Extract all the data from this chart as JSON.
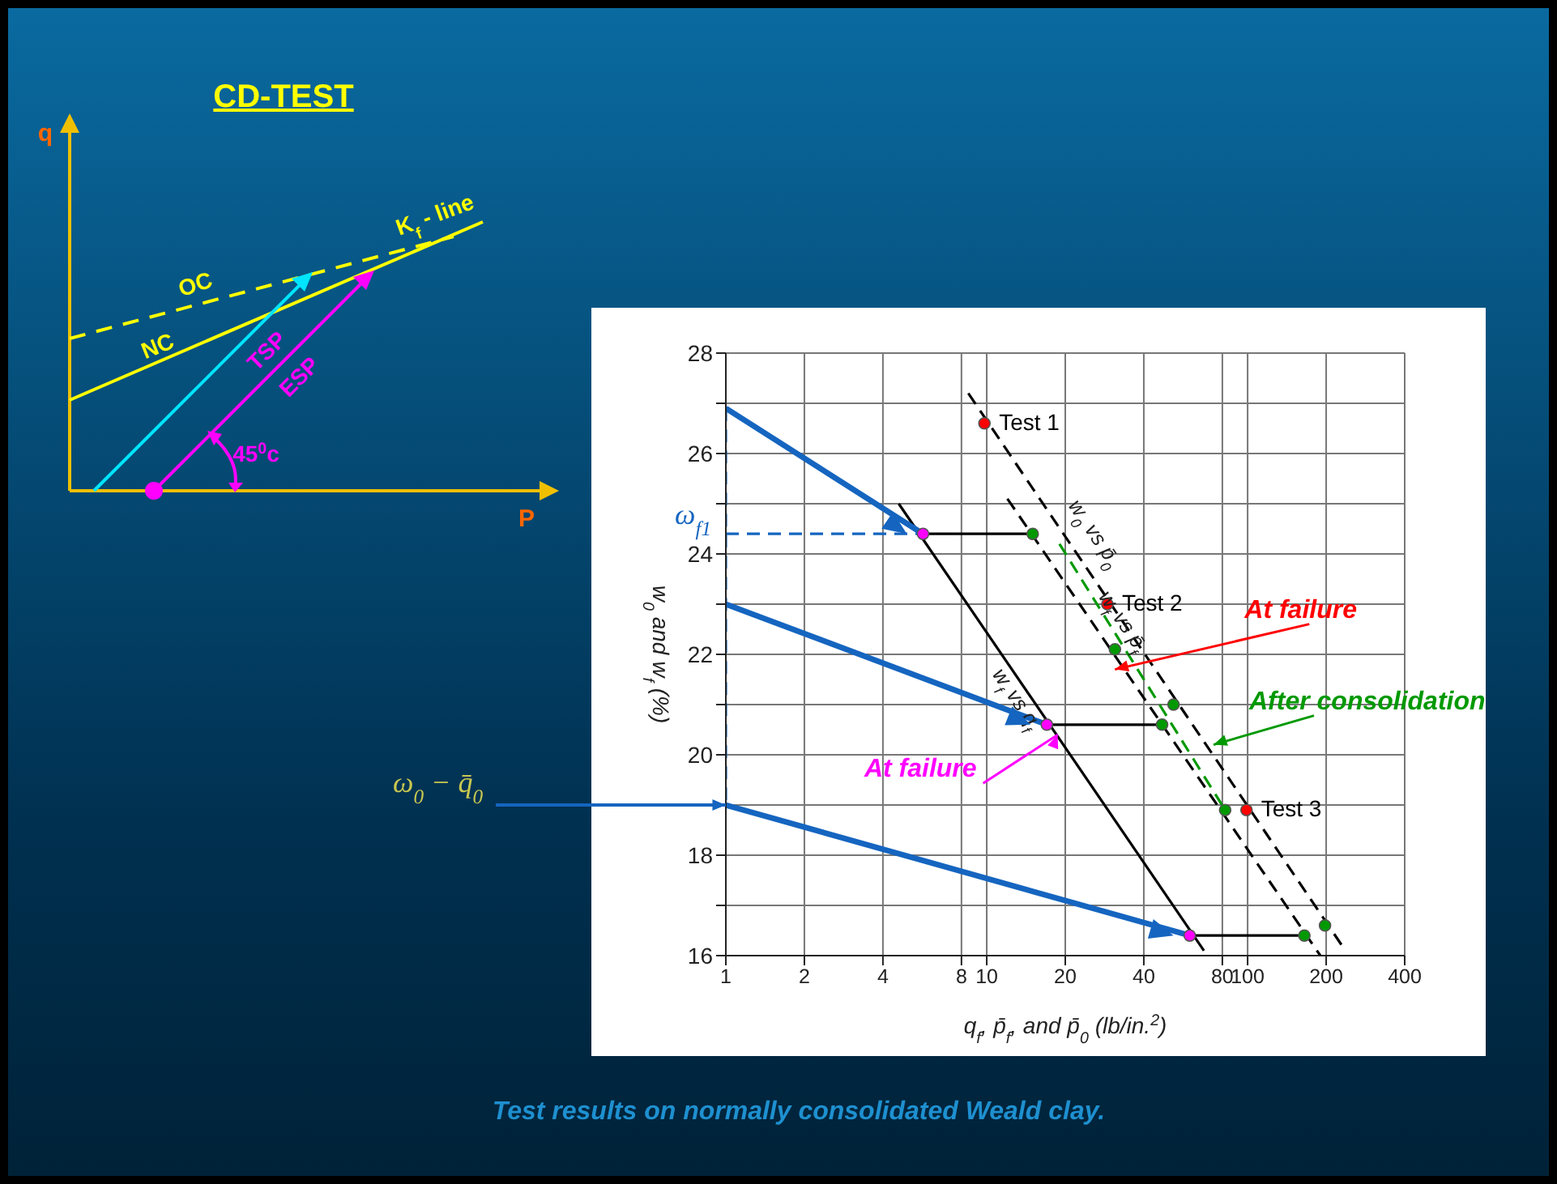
{
  "chart_data": [
    {
      "type": "other",
      "title": "CD-TEST",
      "xlabel": "P",
      "ylabel": "q",
      "annotations": [
        "OC",
        "NC",
        "TSP",
        "ESP",
        "K$_{f}$ - line",
        "45$^{0}$c"
      ]
    },
    {
      "type": "line",
      "xlabel": "q$_{f}$, p̄$_{f}$, and p̄$_{0}$ (lb/in.$^{2}$)",
      "ylabel": "w$_{0}$ and w$_{f}$ (%)",
      "log": "x",
      "grid": true,
      "xlim": [
        1,
        400
      ],
      "xticks": [
        1,
        2,
        4,
        8,
        10,
        20,
        40,
        80,
        100,
        200,
        400
      ],
      "ylim": [
        16,
        28
      ],
      "yticks": [
        16,
        {
          "value": 17,
          "label": null
        },
        18,
        {
          "value": 19,
          "label": null
        },
        20,
        {
          "value": 21,
          "label": null
        },
        22,
        {
          "value": 23,
          "label": null
        },
        24,
        {
          "value": 25,
          "label": null
        },
        26,
        {
          "value": 27,
          "label": null
        },
        28
      ],
      "annotations": [
        {
          "text": "Test 1",
          "x": 9.8,
          "y": 26.6
        },
        {
          "text": "Test 2",
          "x": 29,
          "y": 23
        },
        {
          "text": "Test 3",
          "x": 99,
          "y": 18.9
        },
        {
          "text": "At failure",
          "x": 31,
          "y": 21.7
        },
        {
          "text": "After consolidation",
          "x": 74,
          "y": 20.2
        },
        {
          "text": "At failure",
          "x": 18.7,
          "y": 20.4
        },
        {
          "text": "ω$_{f1}$",
          "x": 1,
          "y": 24.4
        },
        {
          "text": "ω$_{0}$ − q̄$_{0}$",
          "x": 1,
          "y": 19
        },
        "Test results on normally consolidated Weald clay."
      ],
      "series": [
        {
          "type": "line",
          "name": "w$_{f}$ vs q$_{f}$",
          "color": "#000000",
          "line_style": "solid",
          "marker": "none",
          "x": [
            4.6,
            68
          ],
          "values": [
            25,
            16.1
          ]
        },
        {
          "type": "line",
          "name": "w$_{f}$ vs p̄$_{f}$",
          "color": "#000000",
          "line_style": "dashed",
          "marker": "none",
          "x": [
            12,
            190
          ],
          "values": [
            25.1,
            16
          ]
        },
        {
          "type": "line",
          "name": "w$_{0}$ vs p̄$_{0}$",
          "color": "#000000",
          "line_style": "dashed",
          "marker": "none",
          "x": [
            8.5,
            230
          ],
          "values": [
            27.2,
            16.2
          ]
        },
        {
          "type": "line",
          "color": "#009900",
          "line_style": "dashed",
          "marker": "none",
          "x": [
            19,
            82
          ],
          "values": [
            24.2,
            18.9
          ]
        },
        {
          "type": "line",
          "color": "#000000",
          "line_style": "solid",
          "marker": "none",
          "x": [
            5.7,
            15
          ],
          "values": [
            24.4,
            24.4
          ]
        },
        {
          "type": "line",
          "color": "#000000",
          "line_style": "solid",
          "marker": "none",
          "x": [
            17,
            47
          ],
          "values": [
            20.6,
            20.6
          ]
        },
        {
          "type": "line",
          "color": "#000000",
          "line_style": "solid",
          "marker": "none",
          "x": [
            60,
            165
          ],
          "values": [
            16.4,
            16.4
          ]
        },
        {
          "type": "line",
          "color": "#1565c0",
          "line_style": "dashed",
          "marker": "none",
          "x": [
            1,
            5.7
          ],
          "values": [
            24.4,
            24.4
          ]
        },
        {
          "type": "line",
          "color": "#1565c0",
          "line_style": "dashed",
          "marker": "none",
          "x": [
            1,
            1
          ],
          "values": [
            26.9,
            19
          ]
        },
        {
          "type": "line",
          "color": "#1565c0",
          "line_style": "solid",
          "marker": "none",
          "x": [
            1,
            5.7
          ],
          "values": [
            26.9,
            24.4
          ]
        },
        {
          "type": "line",
          "color": "#1565c0",
          "line_style": "solid",
          "marker": "none",
          "x": [
            1,
            17
          ],
          "values": [
            23,
            20.6
          ]
        },
        {
          "type": "line",
          "color": "#1565c0",
          "line_style": "solid",
          "marker": "none",
          "x": [
            1,
            60
          ],
          "values": [
            19,
            16.4
          ]
        },
        {
          "type": "scatter",
          "color": "#ff00ff",
          "marker": "circle",
          "x": [
            5.7,
            17,
            60
          ],
          "values": [
            24.4,
            20.6,
            16.4
          ]
        },
        {
          "type": "scatter",
          "color": "#009900",
          "marker": "circle",
          "x": [
            15,
            31,
            52,
            47,
            82,
            165,
            198
          ],
          "values": [
            24.4,
            22.1,
            21,
            20.6,
            18.9,
            16.4,
            16.6
          ]
        },
        {
          "type": "scatter",
          "color": "#ff0000",
          "marker": "circle",
          "x": [
            9.8,
            29,
            99
          ],
          "values": [
            26.6,
            23,
            18.9
          ]
        }
      ]
    }
  ]
}
